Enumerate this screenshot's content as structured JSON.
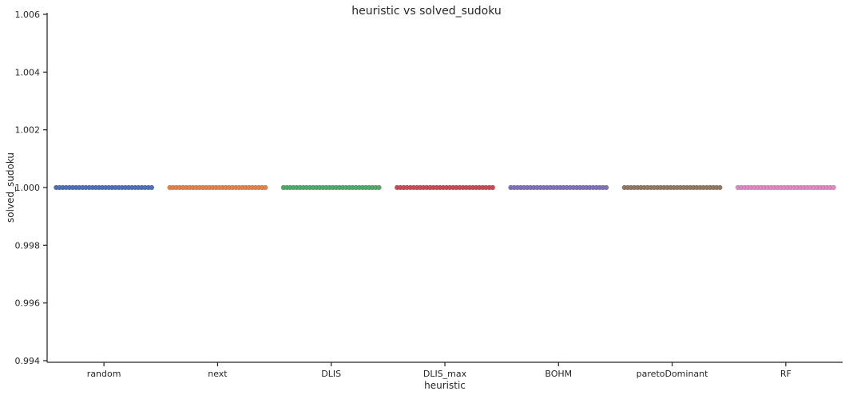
{
  "chart_data": {
    "type": "scatter",
    "title": "heuristic vs solved_sudoku",
    "xlabel": "heuristic",
    "ylabel": "solved_sudoku",
    "categories": [
      "random",
      "next",
      "DLIS",
      "DLIS_max",
      "BOHM",
      "paretoDominant",
      "RF"
    ],
    "colors": [
      "#4c72b0",
      "#dd8452",
      "#55a868",
      "#c44e52",
      "#8172b3",
      "#937860",
      "#da8bc3"
    ],
    "ylim": [
      0.994,
      1.006
    ],
    "yticks": [
      "0.994",
      "0.996",
      "0.998",
      "1.000",
      "1.002",
      "1.004",
      "1.006"
    ],
    "series": [
      {
        "category": "random",
        "value": 1.0
      },
      {
        "category": "next",
        "value": 1.0
      },
      {
        "category": "DLIS",
        "value": 1.0
      },
      {
        "category": "DLIS_max",
        "value": 1.0
      },
      {
        "category": "BOHM",
        "value": 1.0
      },
      {
        "category": "paretoDominant",
        "value": 1.0
      },
      {
        "category": "RF",
        "value": 1.0
      }
    ],
    "grid": false,
    "style": "swarm strip, many overlapping points per category"
  }
}
